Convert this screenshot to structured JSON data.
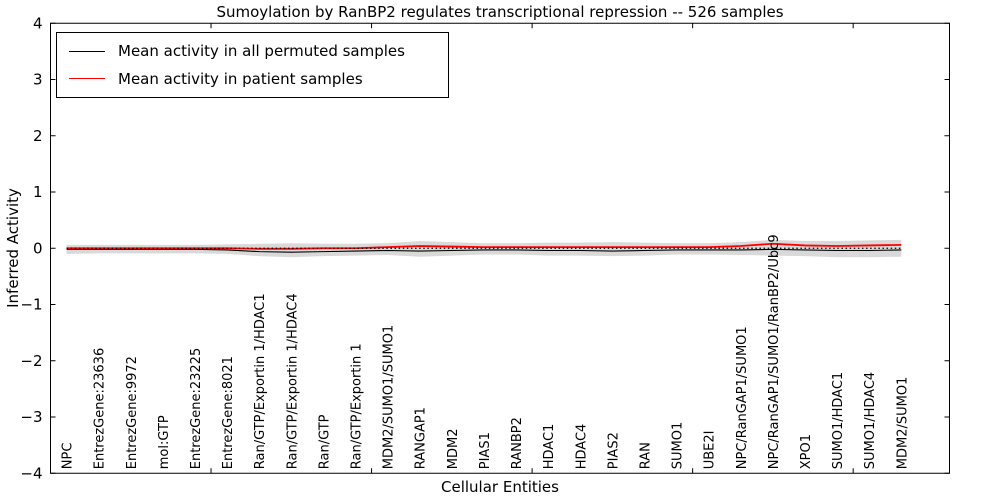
{
  "chart_data": {
    "type": "line",
    "title": "Sumoylation by RanBP2 regulates transcriptional repression -- 526 samples",
    "xlabel": "Cellular Entities",
    "ylabel": "Inferred Activity",
    "ylim": [
      -4,
      4
    ],
    "yticks": [
      4,
      3,
      2,
      1,
      0,
      -1,
      -2,
      -3,
      -4
    ],
    "ytick_labels": [
      "4",
      "3",
      "2",
      "1",
      "0",
      "−1",
      "−2",
      "−3",
      "−4"
    ],
    "xticks_numeric": [
      5,
      10,
      15,
      20,
      25
    ],
    "xaxis_range": [
      0,
      28
    ],
    "grid": false,
    "legend_position": "upper-left",
    "categories": [
      "NPC",
      "EntrezGene:23636",
      "EntrezGene:9972",
      "mol:GTP",
      "EntrezGene:23225",
      "EntrezGene:8021",
      "Ran/GTP/Exportin 1/HDAC1",
      "Ran/GTP/Exportin 1/HDAC4",
      "Ran/GTP",
      "Ran/GTP/Exportin 1",
      "MDM2/SUMO1/SUMO1",
      "RANGAP1",
      "MDM2",
      "PIAS1",
      "RANBP2",
      "HDAC1",
      "HDAC4",
      "PIAS2",
      "RAN",
      "SUMO1",
      "UBE2I",
      "NPC/RanGAP1/SUMO1",
      "NPC/RanGAP1/SUMO1/RanBP2/Ubc9",
      "XPO1",
      "SUMO1/HDAC1",
      "SUMO1/HDAC4",
      "MDM2/SUMO1"
    ],
    "series": [
      {
        "name": "Mean activity in all permuted samples",
        "color": "#000000",
        "values": [
          -0.02,
          -0.02,
          -0.02,
          -0.02,
          -0.02,
          -0.03,
          -0.06,
          -0.07,
          -0.06,
          -0.05,
          -0.04,
          -0.05,
          -0.04,
          -0.03,
          -0.03,
          -0.04,
          -0.04,
          -0.05,
          -0.04,
          -0.03,
          -0.03,
          -0.03,
          -0.02,
          -0.03,
          -0.04,
          -0.04,
          -0.03
        ]
      },
      {
        "name": "Mean activity in patient samples",
        "color": "#ff0000",
        "values": [
          0,
          0,
          0,
          0,
          0,
          0,
          -0.01,
          -0.01,
          0,
          0,
          0.02,
          0.04,
          0.03,
          0.02,
          0.02,
          0.02,
          0.02,
          0.02,
          0.02,
          0.02,
          0.02,
          0.04,
          0.08,
          0.05,
          0.04,
          0.05,
          0.06
        ]
      }
    ],
    "band": {
      "name": "permuted-samples-spread",
      "color": "#d0d0d0",
      "upper": [
        0.06,
        0.06,
        0.06,
        0.06,
        0.06,
        0.07,
        0.08,
        0.09,
        0.08,
        0.08,
        0.09,
        0.13,
        0.11,
        0.09,
        0.09,
        0.1,
        0.1,
        0.11,
        0.1,
        0.09,
        0.09,
        0.11,
        0.15,
        0.13,
        0.13,
        0.14,
        0.15
      ],
      "lower": [
        -0.1,
        -0.09,
        -0.09,
        -0.09,
        -0.09,
        -0.1,
        -0.14,
        -0.16,
        -0.14,
        -0.13,
        -0.12,
        -0.15,
        -0.13,
        -0.11,
        -0.11,
        -0.13,
        -0.13,
        -0.14,
        -0.13,
        -0.11,
        -0.11,
        -0.12,
        -0.13,
        -0.14,
        -0.16,
        -0.16,
        -0.15
      ]
    },
    "zero_line": {
      "value": 0,
      "style": "dotted",
      "color": "#000000"
    }
  }
}
